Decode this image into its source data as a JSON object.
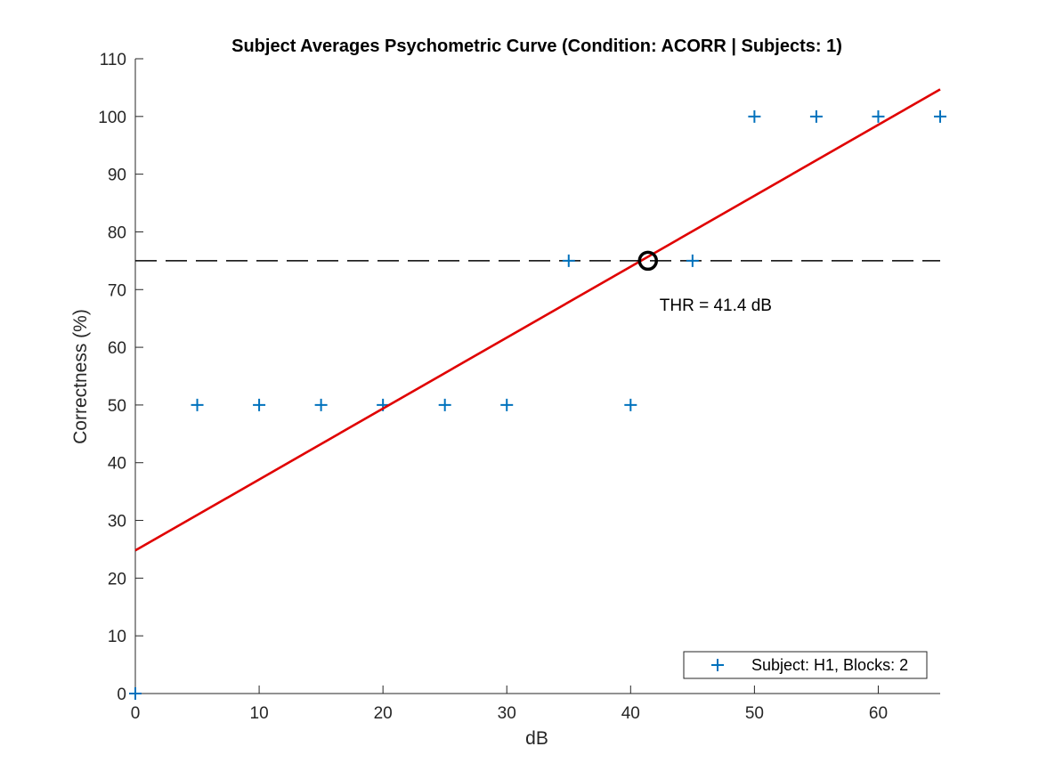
{
  "chart_data": {
    "type": "scatter",
    "title": "Subject Averages Psychometric Curve (Condition: ACORR | Subjects: 1)",
    "xlabel": "dB",
    "ylabel": "Correctness (%)",
    "xlim": [
      0,
      65
    ],
    "ylim": [
      0,
      110
    ],
    "xticks": [
      0,
      10,
      20,
      30,
      40,
      50,
      60
    ],
    "yticks": [
      0,
      10,
      20,
      30,
      40,
      50,
      60,
      70,
      80,
      90,
      100,
      110
    ],
    "grid": false,
    "legend_location": "bottom-right",
    "series": [
      {
        "name": "Subject: H1, Blocks: 2",
        "marker": "plus",
        "color": "#0072BD",
        "x": [
          0,
          5,
          10,
          15,
          20,
          25,
          30,
          35,
          40,
          45,
          50,
          55,
          60,
          65
        ],
        "y": [
          0,
          50,
          50,
          50,
          50,
          50,
          50,
          75,
          50,
          75,
          100,
          100,
          100,
          100
        ]
      }
    ],
    "fit_line": {
      "color": "#E00000",
      "x": [
        0,
        65
      ],
      "y": [
        24.8,
        104.7
      ]
    },
    "reference_line": {
      "style": "dashed",
      "color": "#000000",
      "y": 75
    },
    "threshold": {
      "x": 41.4,
      "y": 75,
      "label": "THR = 41.4 dB"
    }
  }
}
